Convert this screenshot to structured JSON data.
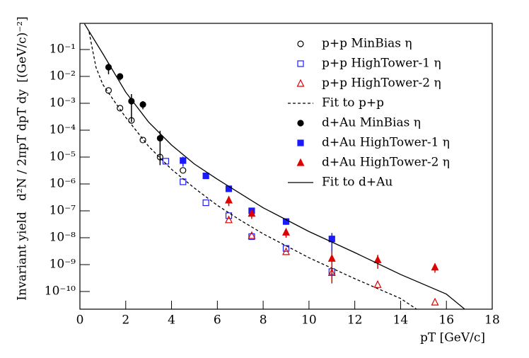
{
  "chart_data": {
    "type": "scatter",
    "xlabel": "pT [GeV/c]",
    "ylabel": "Invariant yield",
    "ylabel_formula": "d²N / 2πpT dpT dy",
    "ylabel_unit": "[(GeV/c)⁻²]",
    "xlim": [
      0,
      18
    ],
    "xticks": [
      0,
      2,
      4,
      6,
      8,
      10,
      12,
      14,
      16,
      18
    ],
    "ylim": [
      2.2e-11,
      0.94
    ],
    "log_y": true,
    "yticks": [
      {
        "value": 1e-10,
        "label": "10⁻¹⁰"
      },
      {
        "value": 1e-09,
        "label": "10⁻⁹"
      },
      {
        "value": 1e-08,
        "label": "10⁻⁸"
      },
      {
        "value": 1e-07,
        "label": "10⁻⁷"
      },
      {
        "value": 1e-06,
        "label": "10⁻⁶"
      },
      {
        "value": 1e-05,
        "label": "10⁻⁵"
      },
      {
        "value": 0.0001,
        "label": "10⁻⁴"
      },
      {
        "value": 0.001,
        "label": "10⁻³"
      },
      {
        "value": 0.01,
        "label": "10⁻²"
      },
      {
        "value": 0.1,
        "label": "10⁻¹"
      }
    ],
    "grid": false,
    "legend": "upper right",
    "series": [
      {
        "name": "p+p MinBias η",
        "color": "#000000",
        "marker": "circle",
        "filled": false,
        "x": [
          1.25,
          1.75,
          2.25,
          2.75,
          3.5,
          4.5
        ],
        "values": [
          0.003,
          0.00066,
          0.00023,
          4.3e-05,
          1e-05,
          3.2e-06
        ]
      },
      {
        "name": "p+p HighTower-1 η",
        "color": "#1a1aff",
        "marker": "square",
        "filled": false,
        "x": [
          3.75,
          4.5,
          5.5,
          6.5,
          7.5,
          9,
          11
        ],
        "values": [
          7e-06,
          1.2e-06,
          2e-07,
          6.6e-08,
          1.1e-08,
          4e-09,
          5.5e-10
        ]
      },
      {
        "name": "p+p HighTower-2 η",
        "color": "#e00000",
        "marker": "triangle",
        "filled": false,
        "x": [
          6.5,
          7.5,
          9,
          11,
          13,
          15.5
        ],
        "values": [
          4.6e-08,
          1.2e-08,
          3e-09,
          5e-10,
          1.8e-10,
          4e-11
        ]
      },
      {
        "name": "Fit to p+p",
        "color": "#000000",
        "line": "dashed",
        "x": [
          0.4,
          0.7,
          1,
          1.5,
          2,
          3,
          4,
          5,
          6,
          7,
          8,
          10,
          12,
          14,
          14.7
        ],
        "values": [
          0.45,
          0.022,
          0.005,
          0.0012,
          0.0003,
          2.5e-05,
          3.5e-06,
          7e-07,
          1.6e-07,
          4.5e-08,
          1.4e-08,
          1.8e-09,
          3e-10,
          5.5e-11,
          2.2e-11
        ]
      },
      {
        "name": "d+Au MinBias η",
        "color": "#000000",
        "marker": "circle",
        "filled": true,
        "x": [
          1.25,
          1.75,
          2.25,
          2.75,
          3.5
        ],
        "values": [
          0.022,
          0.01,
          0.0012,
          0.0009,
          5e-05
        ],
        "errors": [
          0.01,
          0.003,
          0.001,
          0.0003,
          4.5e-05
        ]
      },
      {
        "name": "d+Au HighTower-1 η",
        "color": "#1a1aff",
        "marker": "square",
        "filled": true,
        "x": [
          4.5,
          5.5,
          6.5,
          7.5,
          9,
          11
        ],
        "values": [
          7.4e-06,
          2e-06,
          6.6e-07,
          1e-07,
          4e-08,
          9e-09
        ],
        "errors": [
          3e-06,
          4e-07,
          1e-07,
          3e-08,
          1e-08,
          6e-09
        ]
      },
      {
        "name": "d+Au HighTower-2 η",
        "color": "#e00000",
        "marker": "triangle",
        "filled": true,
        "x": [
          6.5,
          7.5,
          9,
          11,
          13,
          15.5
        ],
        "values": [
          2.5e-07,
          8e-08,
          1.6e-08,
          1.7e-09,
          1.5e-09,
          8e-10
        ],
        "errors": [
          1e-07,
          3e-08,
          6e-09,
          1.5e-09,
          8e-10,
          3e-10
        ]
      },
      {
        "name": "Fit to d+Au",
        "color": "#000000",
        "line": "solid",
        "x": [
          0.2,
          1,
          2,
          3,
          4,
          5,
          6,
          8,
          10,
          12,
          14,
          16,
          16.8
        ],
        "values": [
          0.9,
          0.07,
          0.0026,
          0.0002,
          2.8e-05,
          5.5e-06,
          1.5e-06,
          1.3e-07,
          1.7e-08,
          2.8e-09,
          4.3e-10,
          8e-11,
          2.2e-11
        ]
      }
    ]
  }
}
